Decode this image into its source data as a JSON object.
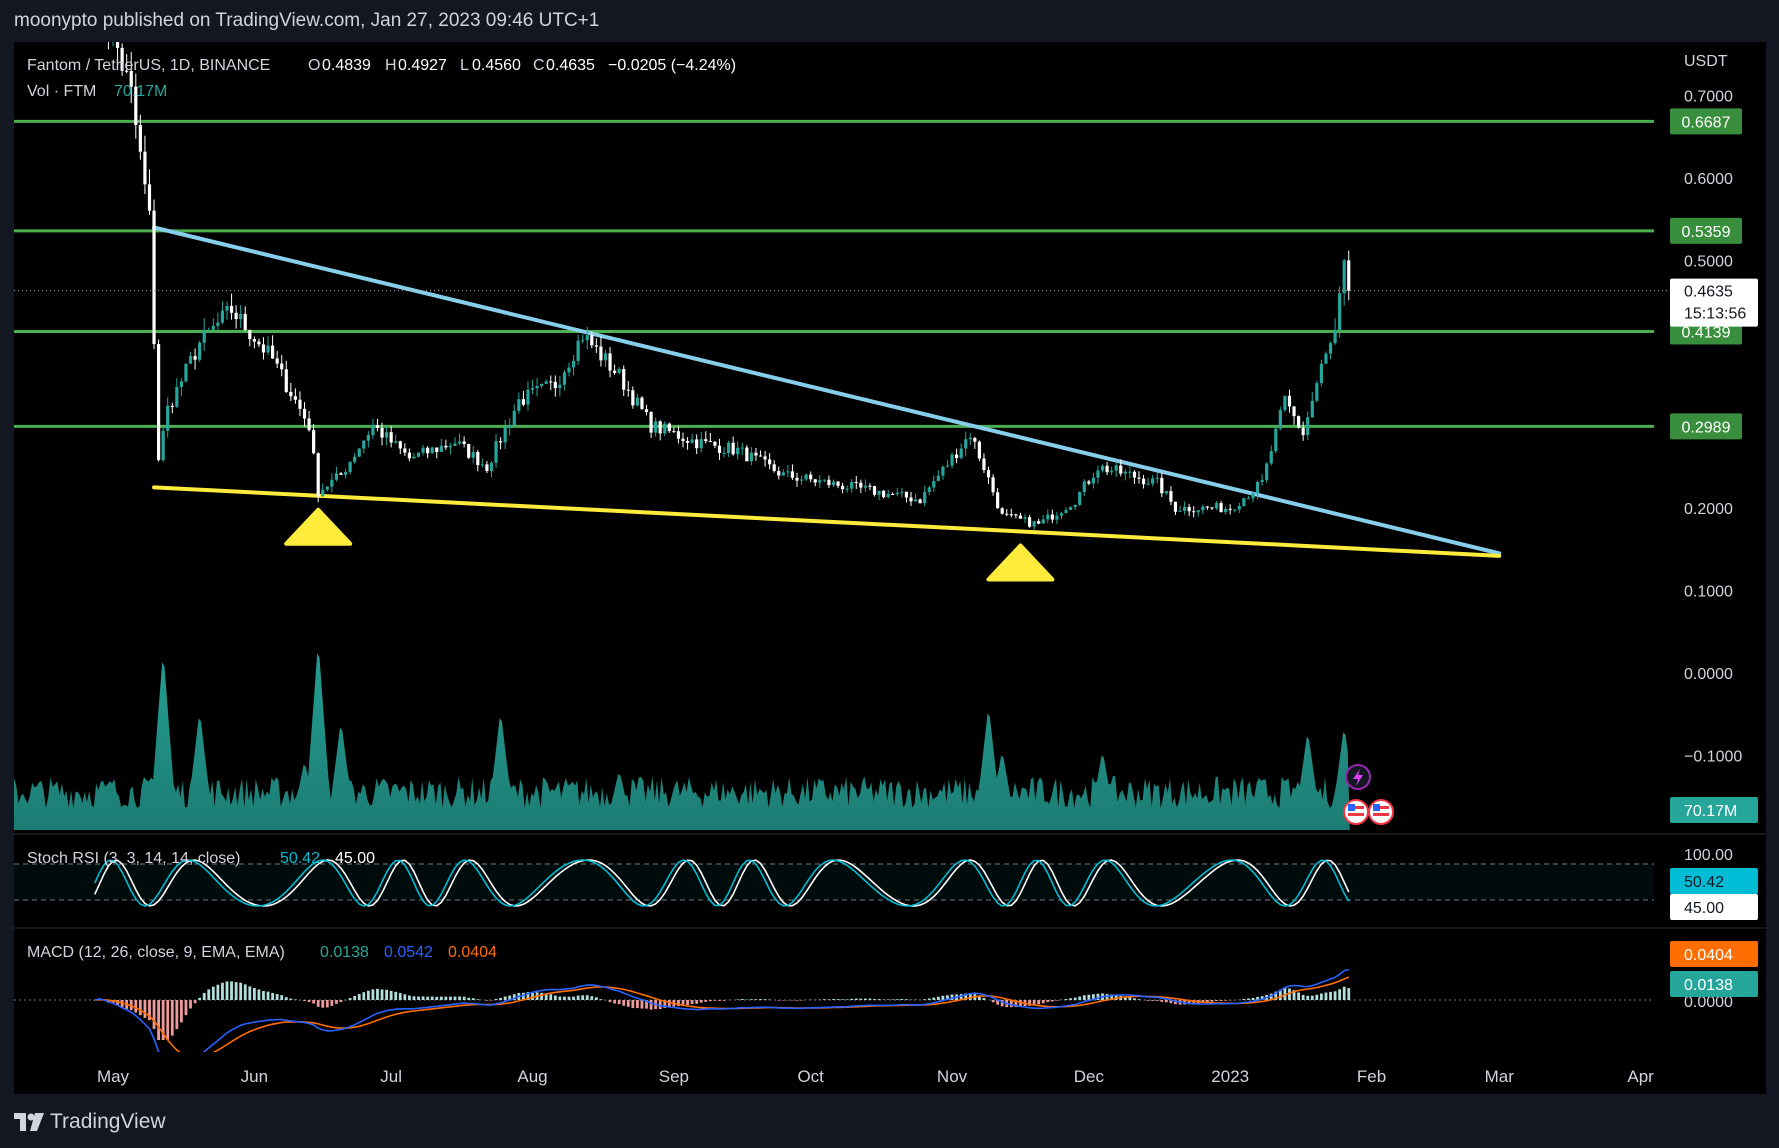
{
  "header": {
    "publisher": "moonypto published on TradingView.com, Jan 27, 2023 09:46 UTC+1"
  },
  "legend": {
    "symbol": "Fantom / TetherUS, 1D, BINANCE",
    "o_label": "O",
    "o_value": "0.4839",
    "h_label": "H",
    "h_value": "0.4927",
    "l_label": "L",
    "l_value": "0.4560",
    "c_label": "C",
    "c_value": "0.4635",
    "change": "−0.0205 (−4.24%)",
    "vol_label": "Vol · FTM",
    "vol_value": "70.17M"
  },
  "price_axis": {
    "currency": "USDT",
    "current_price": "0.4635",
    "countdown": "15:13:56",
    "volume_tag": "70.17M"
  },
  "stoch": {
    "label": "Stoch RSI (3, 3, 14, 14, close)",
    "k_value": "50.42",
    "d_value": "45.00",
    "axis_top": "100.00",
    "k_tag": "50.42",
    "d_tag": "45.00"
  },
  "macd": {
    "label": "MACD (12, 26, close, 9, EMA, EMA)",
    "hist_value": "0.0138",
    "macd_value": "0.0542",
    "signal_value": "0.0404",
    "signal_tag": "0.0404",
    "hist_tag": "0.0138",
    "zero_label": "0.0000"
  },
  "footer": {
    "brand": "TradingView"
  },
  "colors": {
    "up_candle": "#26a69a",
    "down_candle": "#ffffff",
    "resistance": "#4caf50",
    "trendline_upper": "#87ceeb",
    "trendline_lower": "#ffeb3b",
    "volume": "#26a69a",
    "macd_line": "#2962ff",
    "signal_line": "#ff6d00",
    "stoch_k": "#00bcd4",
    "stoch_d": "#ffffff"
  },
  "chart_data": {
    "type": "candlestick",
    "x_ticks": [
      "May",
      "Jun",
      "Jul",
      "Aug",
      "Sep",
      "Oct",
      "Nov",
      "Dec",
      "2023",
      "Feb",
      "Mar",
      "Apr"
    ],
    "y_ticks": [
      "0.7000",
      "0.6000",
      "0.5000",
      "0.2000",
      "0.1000",
      "0.0000",
      "−0.1000"
    ],
    "ylim": [
      -0.19,
      0.73
    ],
    "horizontal_levels": [
      {
        "value": 0.6687,
        "label": "0.6687"
      },
      {
        "value": 0.5359,
        "label": "0.5359"
      },
      {
        "value": 0.4139,
        "label": "0.4139"
      },
      {
        "value": 0.2989,
        "label": "0.2989"
      }
    ],
    "trendlines": [
      {
        "name": "upper",
        "from": [
          "2022-05-10",
          0.54
        ],
        "to": [
          "2023-03-01",
          0.145
        ]
      },
      {
        "name": "lower",
        "from": [
          "2022-05-10",
          0.225
        ],
        "to": [
          "2023-03-01",
          0.142
        ]
      }
    ],
    "markers": [
      {
        "type": "triangle-up",
        "date": "2022-06-15"
      },
      {
        "type": "triangle-up",
        "date": "2022-11-16"
      }
    ],
    "price_path": [
      [
        "2022-04-27",
        0.85
      ],
      [
        "2022-05-05",
        0.7
      ],
      [
        "2022-05-09",
        0.55
      ],
      [
        "2022-05-11",
        0.26
      ],
      [
        "2022-05-13",
        0.32
      ],
      [
        "2022-05-20",
        0.4
      ],
      [
        "2022-05-27",
        0.44
      ],
      [
        "2022-06-05",
        0.38
      ],
      [
        "2022-06-13",
        0.3
      ],
      [
        "2022-06-15",
        0.22
      ],
      [
        "2022-06-20",
        0.24
      ],
      [
        "2022-06-27",
        0.3
      ],
      [
        "2022-07-05",
        0.26
      ],
      [
        "2022-07-15",
        0.28
      ],
      [
        "2022-07-22",
        0.25
      ],
      [
        "2022-07-29",
        0.33
      ],
      [
        "2022-08-06",
        0.35
      ],
      [
        "2022-08-12",
        0.41
      ],
      [
        "2022-08-20",
        0.36
      ],
      [
        "2022-08-27",
        0.3
      ],
      [
        "2022-09-06",
        0.28
      ],
      [
        "2022-09-15",
        0.27
      ],
      [
        "2022-09-25",
        0.24
      ],
      [
        "2022-10-05",
        0.23
      ],
      [
        "2022-10-15",
        0.22
      ],
      [
        "2022-10-25",
        0.21
      ],
      [
        "2022-11-05",
        0.29
      ],
      [
        "2022-11-08",
        0.25
      ],
      [
        "2022-11-12",
        0.19
      ],
      [
        "2022-11-20",
        0.18
      ],
      [
        "2022-11-28",
        0.21
      ],
      [
        "2022-12-03",
        0.25
      ],
      [
        "2022-12-10",
        0.24
      ],
      [
        "2022-12-16",
        0.23
      ],
      [
        "2022-12-20",
        0.2
      ],
      [
        "2022-12-27",
        0.2
      ],
      [
        "2023-01-01",
        0.2
      ],
      [
        "2023-01-08",
        0.23
      ],
      [
        "2023-01-13",
        0.33
      ],
      [
        "2023-01-17",
        0.29
      ],
      [
        "2023-01-21",
        0.37
      ],
      [
        "2023-01-24",
        0.41
      ],
      [
        "2023-01-26",
        0.49
      ],
      [
        "2023-01-27",
        0.4635
      ]
    ]
  }
}
